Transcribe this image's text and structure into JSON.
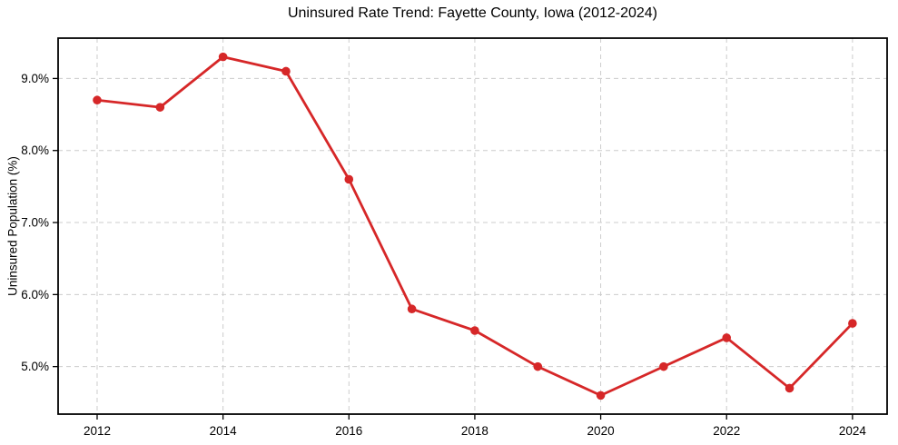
{
  "figure": {
    "title": "Uninsured Rate Trend: Fayette County, Iowa (2012-2024)"
  },
  "chart_data": {
    "type": "line",
    "title": "Uninsured Rate Trend: Fayette County, Iowa (2012-2024)",
    "xlabel": "",
    "ylabel": "Uninsured Population (%)",
    "x": [
      2012,
      2013,
      2014,
      2015,
      2016,
      2017,
      2018,
      2019,
      2020,
      2021,
      2022,
      2023,
      2024
    ],
    "values": [
      8.7,
      8.6,
      9.3,
      9.1,
      7.6,
      5.8,
      5.5,
      5.0,
      4.6,
      5.0,
      5.4,
      4.7,
      5.6
    ],
    "x_ticks": [
      2012,
      2014,
      2016,
      2018,
      2020,
      2022,
      2024
    ],
    "x_tick_labels": [
      "2012",
      "2014",
      "2016",
      "2018",
      "2020",
      "2022",
      "2024"
    ],
    "y_ticks": [
      5.0,
      6.0,
      7.0,
      8.0,
      9.0
    ],
    "y_tick_labels": [
      "5.0%",
      "6.0%",
      "7.0%",
      "8.0%",
      "9.0%"
    ],
    "xlim": [
      2011.38,
      2024.55
    ],
    "ylim": [
      4.34,
      9.56
    ],
    "grid": true,
    "grid_style": "dashed",
    "legend_position": "none",
    "marker": "circle",
    "colors": {
      "line": "#d62728",
      "grid": "#cccccc",
      "spine": "#000000",
      "text": "#000000",
      "background": "#ffffff"
    }
  }
}
